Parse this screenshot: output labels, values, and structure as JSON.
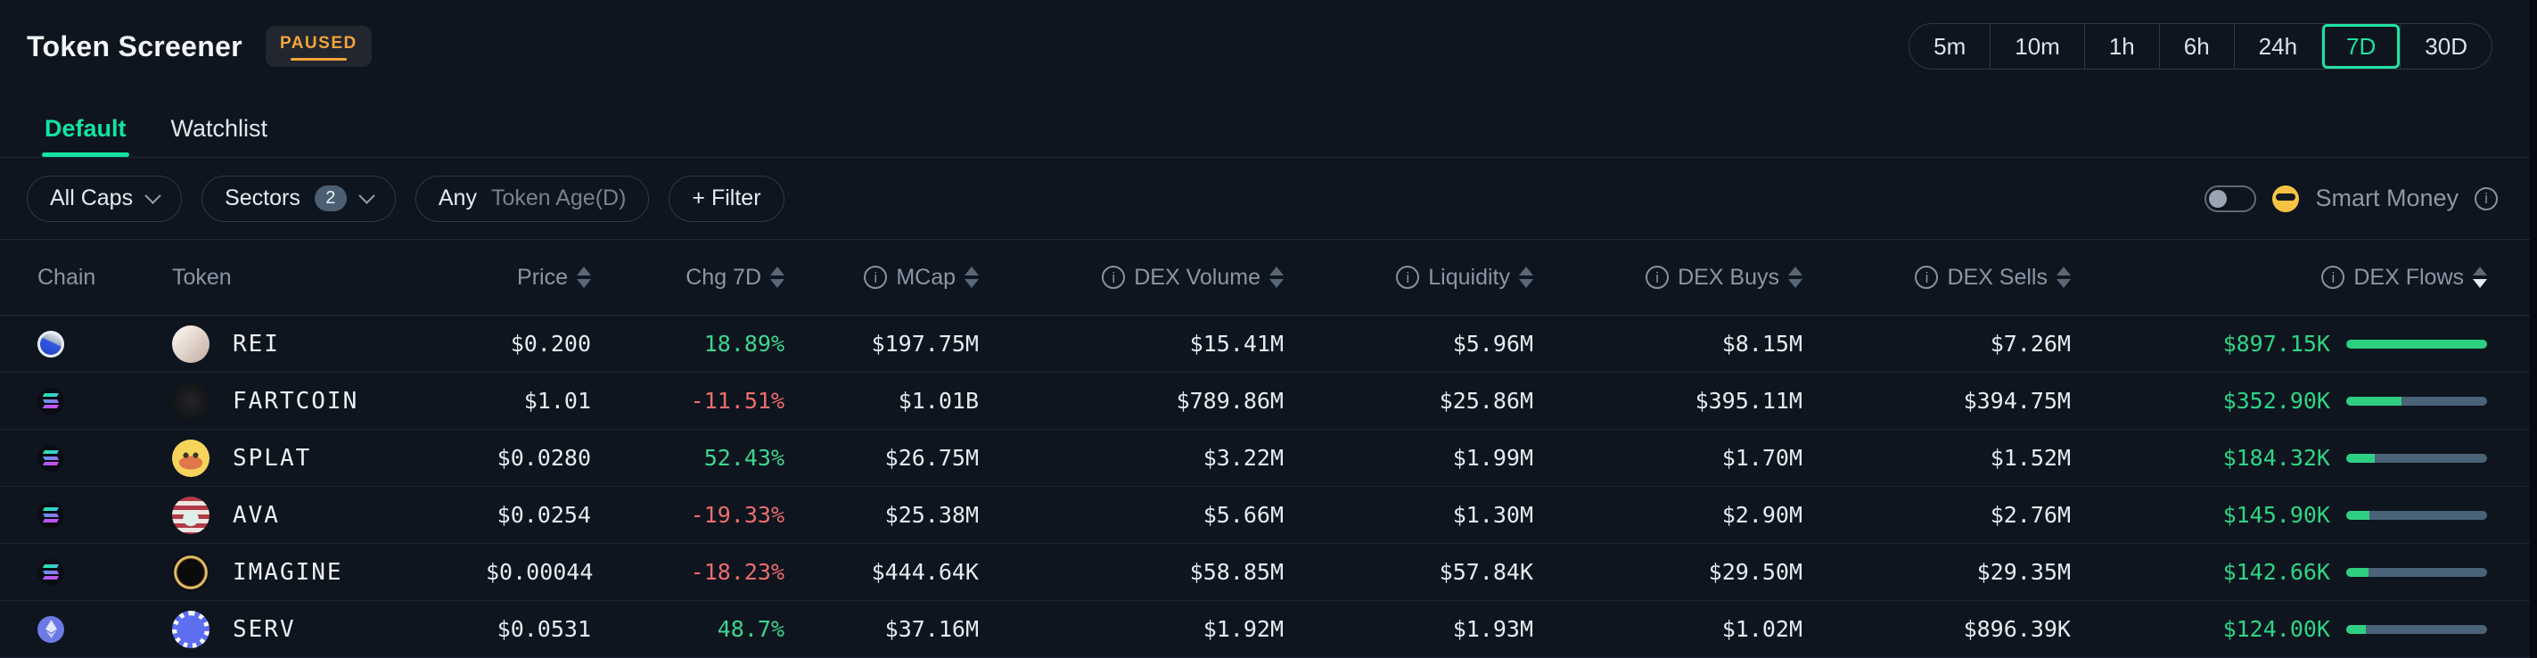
{
  "header": {
    "title": "Token Screener",
    "status_badge": "PAUSED"
  },
  "timeframes": {
    "options": [
      "5m",
      "10m",
      "1h",
      "6h",
      "24h",
      "7D",
      "30D"
    ],
    "selected": "7D"
  },
  "tabs": [
    {
      "label": "Default",
      "active": true
    },
    {
      "label": "Watchlist",
      "active": false
    }
  ],
  "filters": {
    "caps_label": "All Caps",
    "sectors_label": "Sectors",
    "sectors_count": "2",
    "token_age_value": "Any",
    "token_age_label": "Token Age(D)",
    "add_filter_label": "+ Filter"
  },
  "smart_money": {
    "label": "Smart Money",
    "toggle_on": false
  },
  "colors": {
    "accent_green": "#12e3a1",
    "positive": "#3ed68f",
    "negative": "#ee6d6d",
    "flow_green": "#2fd584",
    "flow_bar_fill": "#2fcf82",
    "flow_bar_rest": "#4a6378",
    "paused_orange": "#f2a43a",
    "background": "#0e151f"
  },
  "table": {
    "columns": [
      {
        "label": "Chain",
        "align": "left",
        "info": false,
        "sortable": false
      },
      {
        "label": "Token",
        "align": "left",
        "info": false,
        "sortable": false
      },
      {
        "label": "Price",
        "align": "right",
        "info": false,
        "sortable": true
      },
      {
        "label": "Chg 7D",
        "align": "right",
        "info": false,
        "sortable": true
      },
      {
        "label": "MCap",
        "align": "right",
        "info": true,
        "sortable": true
      },
      {
        "label": "DEX Volume",
        "align": "right",
        "info": true,
        "sortable": true
      },
      {
        "label": "Liquidity",
        "align": "right",
        "info": true,
        "sortable": true
      },
      {
        "label": "DEX Buys",
        "align": "right",
        "info": true,
        "sortable": true
      },
      {
        "label": "DEX Sells",
        "align": "right",
        "info": true,
        "sortable": true
      },
      {
        "label": "DEX Flows",
        "align": "right",
        "info": true,
        "sortable": true,
        "sorted": "desc"
      }
    ],
    "rows": [
      {
        "chain": "blue-sphere",
        "token": "REI",
        "price": "$0.200",
        "chg": "18.89%",
        "chg_dir": "up",
        "mcap": "$197.75M",
        "dex_volume": "$15.41M",
        "liquidity": "$5.96M",
        "dex_buys": "$8.15M",
        "dex_sells": "$7.26M",
        "dex_flows": "$897.15K",
        "flow_pct": 100,
        "avatar_bg": "linear-gradient(135deg,#f5ece4 20%,#cdbcb2 80%)"
      },
      {
        "chain": "solana",
        "token": "FARTCOIN",
        "price": "$1.01",
        "chg": "-11.51%",
        "chg_dir": "down",
        "mcap": "$1.01B",
        "dex_volume": "$789.86M",
        "liquidity": "$25.86M",
        "dex_buys": "$395.11M",
        "dex_sells": "$394.75M",
        "dex_flows": "$352.90K",
        "flow_pct": 39.3,
        "avatar_bg": "radial-gradient(circle at 50% 50%,#24252a 0%,#121316 75%)"
      },
      {
        "chain": "solana",
        "token": "SPLAT",
        "price": "$0.0280",
        "chg": "52.43%",
        "chg_dir": "up",
        "mcap": "$26.75M",
        "dex_volume": "$3.22M",
        "liquidity": "$1.99M",
        "dex_buys": "$1.70M",
        "dex_sells": "$1.52M",
        "dex_flows": "$184.32K",
        "flow_pct": 20.5,
        "avatar_bg": "radial-gradient(circle at 37% 42%,#3a3428 8%,rgba(0,0,0,0) 9%),radial-gradient(circle at 63% 42%,#3a3428 8%,rgba(0,0,0,0) 9%),radial-gradient(ellipse 32% 18% at 50% 62%,#e0784a 97%,rgba(0,0,0,0) 100%),#f6d45c"
      },
      {
        "chain": "solana",
        "token": "AVA",
        "price": "$0.0254",
        "chg": "-19.33%",
        "chg_dir": "down",
        "mcap": "$25.38M",
        "dex_volume": "$5.66M",
        "liquidity": "$1.30M",
        "dex_buys": "$2.90M",
        "dex_sells": "$2.76M",
        "dex_flows": "$145.90K",
        "flow_pct": 16.3,
        "avatar_bg": "radial-gradient(circle at 50% 58%,#dff0ea 26%,rgba(0,0,0,0) 28%),repeating-linear-gradient(180deg,#b23a48 0 5px,#ece7e2 5px 10px)"
      },
      {
        "chain": "solana",
        "token": "IMAGINE",
        "price": "$0.00044",
        "chg": "-18.23%",
        "chg_dir": "down",
        "mcap": "$444.64K",
        "dex_volume": "$58.85M",
        "liquidity": "$57.84K",
        "dex_buys": "$29.50M",
        "dex_sells": "$29.35M",
        "dex_flows": "$142.66K",
        "flow_pct": 15.9,
        "avatar_bg": "radial-gradient(circle at 50% 50%,#0b0b0b 50%,#d9a43e 55%,#f4d98a 60%,#0b0b0b 66%),#0b0b0b"
      },
      {
        "chain": "ethereum",
        "token": "SERV",
        "price": "$0.0531",
        "chg": "48.7%",
        "chg_dir": "up",
        "mcap": "$37.16M",
        "dex_volume": "$1.92M",
        "liquidity": "$1.93M",
        "dex_buys": "$1.02M",
        "dex_sells": "$896.39K",
        "dex_flows": "$124.00K",
        "flow_pct": 13.8,
        "avatar_bg": "radial-gradient(circle at 50% 50%,#5e6ef0 52%,rgba(0,0,0,0) 54%),repeating-conic-gradient(#ffffff 0 14deg,#5e6ef0 14deg 32deg)"
      }
    ]
  }
}
